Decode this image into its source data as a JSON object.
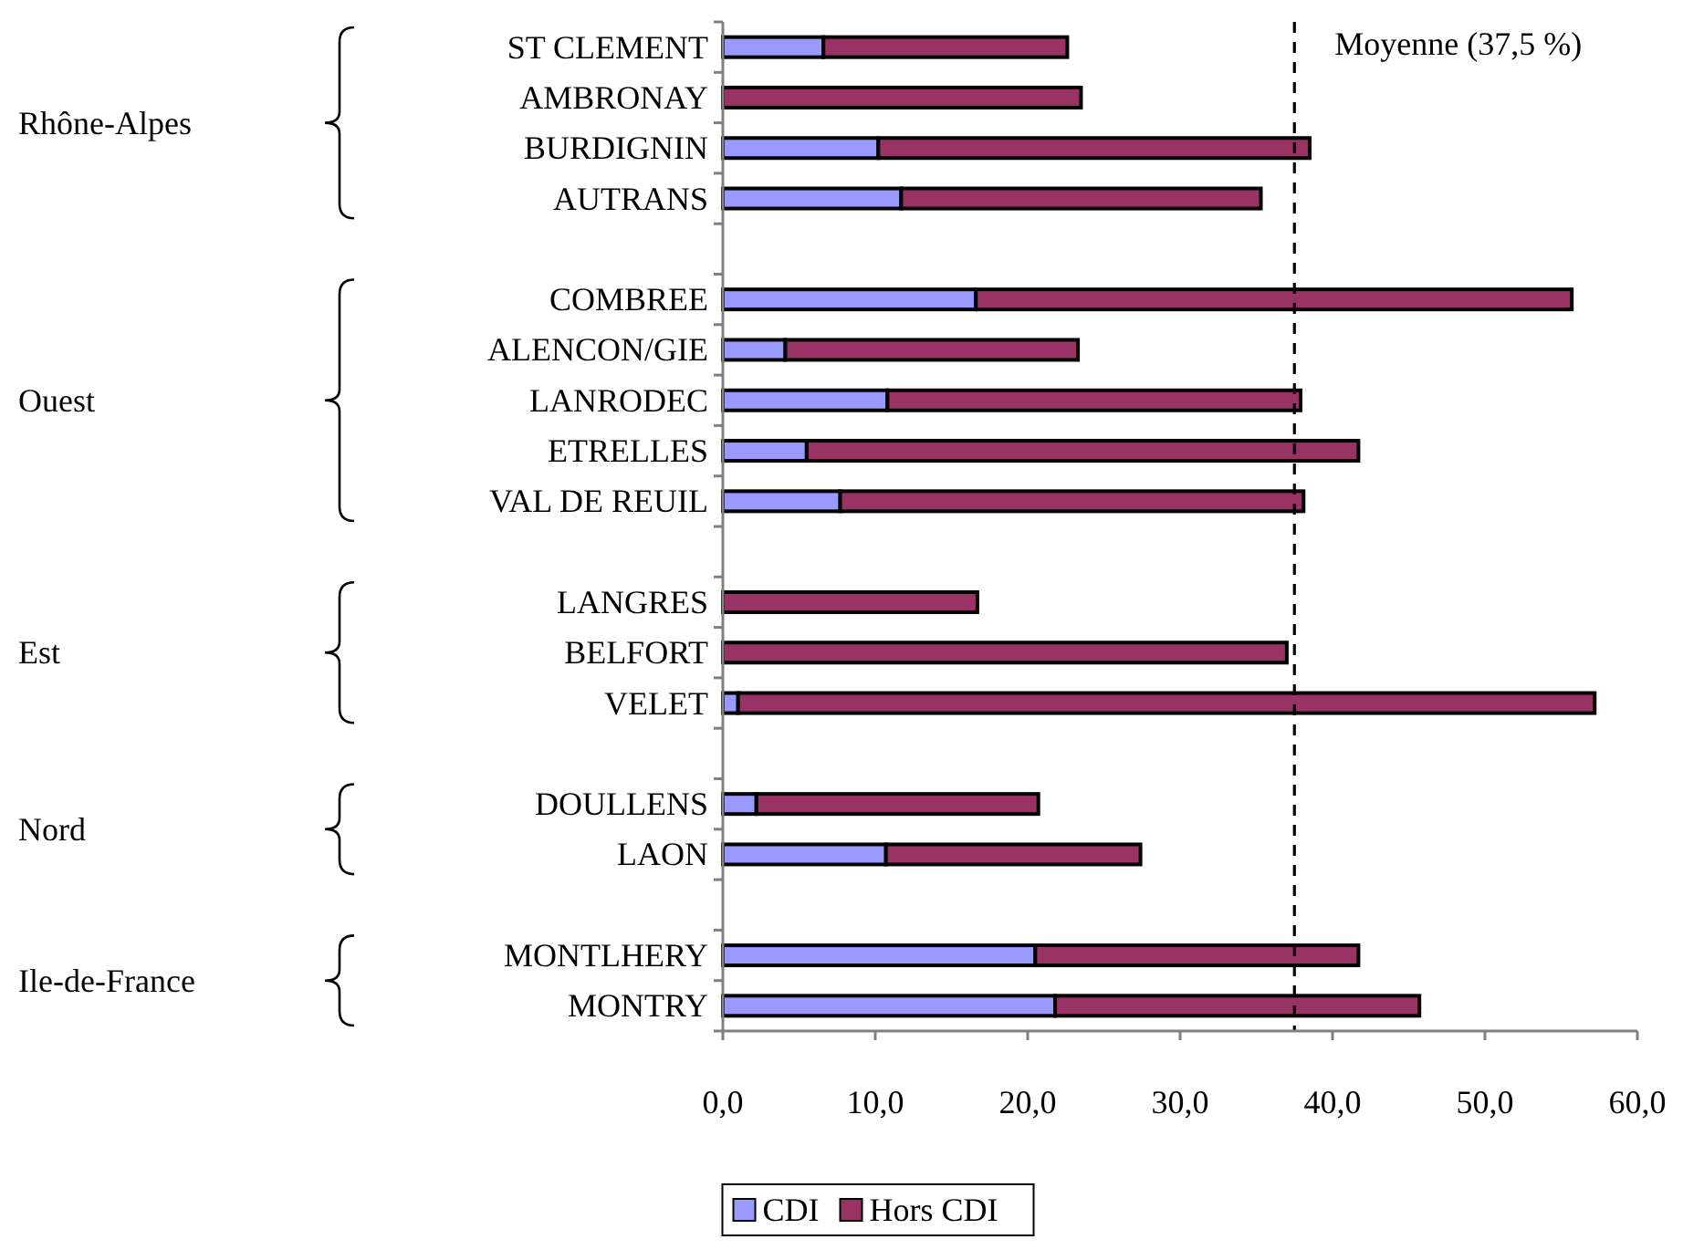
{
  "chart_data": {
    "type": "bar",
    "orientation": "horizontal",
    "stacked": true,
    "categories": [
      "ST CLEMENT",
      "AMBRONAY",
      "BURDIGNIN",
      "AUTRANS",
      null,
      "COMBREE",
      "ALENCON/GIE",
      "LANRODEC",
      "ETRELLES",
      "VAL DE REUIL",
      null,
      "LANGRES",
      "BELFORT",
      "VELET",
      null,
      "DOULLENS",
      "LAON",
      null,
      "MONTLHERY",
      "MONTRY"
    ],
    "series": [
      {
        "name": "CDI",
        "color": "#9999ff",
        "values": [
          6.6,
          0,
          10.2,
          11.7,
          null,
          16.6,
          4.1,
          10.8,
          5.5,
          7.7,
          null,
          0,
          0,
          1.0,
          null,
          2.2,
          10.7,
          null,
          20.5,
          21.8
        ]
      },
      {
        "name": "Hors CDI",
        "color": "#993366",
        "values": [
          16.0,
          23.5,
          28.3,
          23.6,
          null,
          39.1,
          19.2,
          27.1,
          36.2,
          30.4,
          null,
          16.7,
          37.0,
          56.2,
          null,
          18.5,
          16.7,
          null,
          21.2,
          23.9
        ]
      }
    ],
    "xlim": [
      0,
      60
    ],
    "xticks": [
      {
        "value": 0,
        "label": "0,0"
      },
      {
        "value": 10,
        "label": "10,0"
      },
      {
        "value": 20,
        "label": "20,0"
      },
      {
        "value": 30,
        "label": "30,0"
      },
      {
        "value": 40,
        "label": "40,0"
      },
      {
        "value": 50,
        "label": "50,0"
      },
      {
        "value": 60,
        "label": "60,0"
      }
    ],
    "ref_lines": [
      {
        "axis": "x",
        "value": 37.5,
        "label": "Moyenne (37,5 %)",
        "line_style": "dashed",
        "color": "#000000"
      }
    ],
    "annotations": [
      "Rhône-Alpes",
      "Ouest",
      "Est",
      "Nord",
      "Ile-de-France"
    ],
    "legend": "bottom",
    "grid": false
  }
}
